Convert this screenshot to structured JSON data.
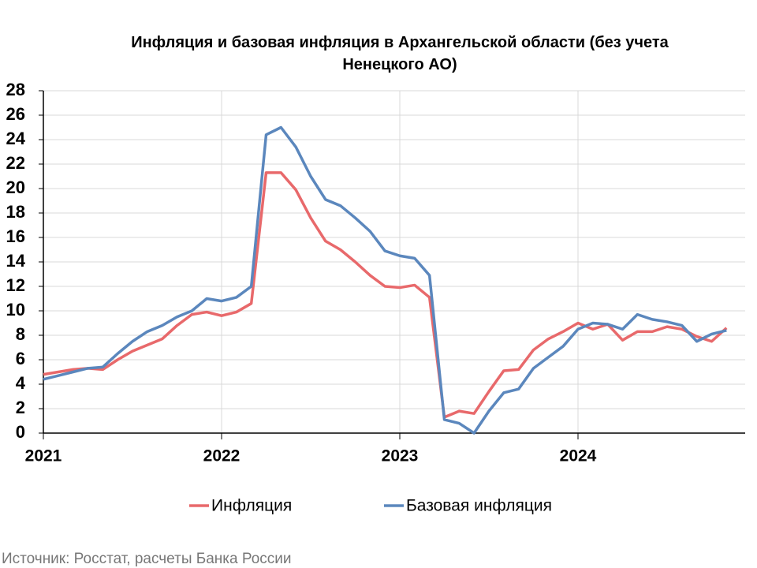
{
  "chart_data": {
    "type": "line",
    "title": "Инфляция и базовая инфляция в Архангельской области (без учета Ненецкого АО)",
    "categories": [
      "2021",
      null,
      null,
      null,
      null,
      null,
      null,
      null,
      null,
      null,
      null,
      null,
      "2022",
      null,
      null,
      null,
      null,
      null,
      null,
      null,
      null,
      null,
      null,
      null,
      "2023",
      null,
      null,
      null,
      null,
      null,
      null,
      null,
      null,
      null,
      null,
      null,
      "2024",
      null,
      null,
      null,
      null,
      null,
      null,
      null,
      null,
      null,
      null
    ],
    "series": [
      {
        "name": "Инфляция",
        "color": "#e8696b",
        "values": [
          4.8,
          5.0,
          5.2,
          5.3,
          5.2,
          6.0,
          6.7,
          7.2,
          7.7,
          8.8,
          9.7,
          9.9,
          9.6,
          9.9,
          10.6,
          21.3,
          21.3,
          19.9,
          17.6,
          15.7,
          15.0,
          14.0,
          12.9,
          12.0,
          11.9,
          12.1,
          11.1,
          1.3,
          1.8,
          1.6,
          3.4,
          5.1,
          5.2,
          6.8,
          7.7,
          8.3,
          9.0,
          8.5,
          8.9,
          7.6,
          8.3,
          8.3,
          8.7,
          8.5,
          7.9,
          7.5,
          8.6
        ]
      },
      {
        "name": "Базовая инфляция",
        "color": "#5b87bd",
        "values": [
          4.4,
          4.7,
          5.0,
          5.3,
          5.4,
          6.5,
          7.5,
          8.3,
          8.8,
          9.5,
          10.0,
          11.0,
          10.8,
          11.1,
          12.0,
          24.4,
          25.0,
          23.4,
          21.0,
          19.1,
          18.6,
          17.6,
          16.5,
          14.9,
          14.5,
          14.3,
          12.9,
          1.1,
          0.8,
          0.0,
          1.8,
          3.3,
          3.6,
          5.3,
          6.2,
          7.1,
          8.5,
          9.0,
          8.9,
          8.5,
          9.7,
          9.3,
          9.1,
          8.8,
          7.5,
          8.1,
          8.4
        ]
      }
    ],
    "ylim": [
      0,
      28
    ],
    "yticks": [
      0,
      2,
      4,
      6,
      8,
      10,
      12,
      14,
      16,
      18,
      20,
      22,
      24,
      26,
      28
    ],
    "grid": true,
    "legend": "bottom",
    "source": "Источник: Росстат, расчеты Банка России"
  }
}
